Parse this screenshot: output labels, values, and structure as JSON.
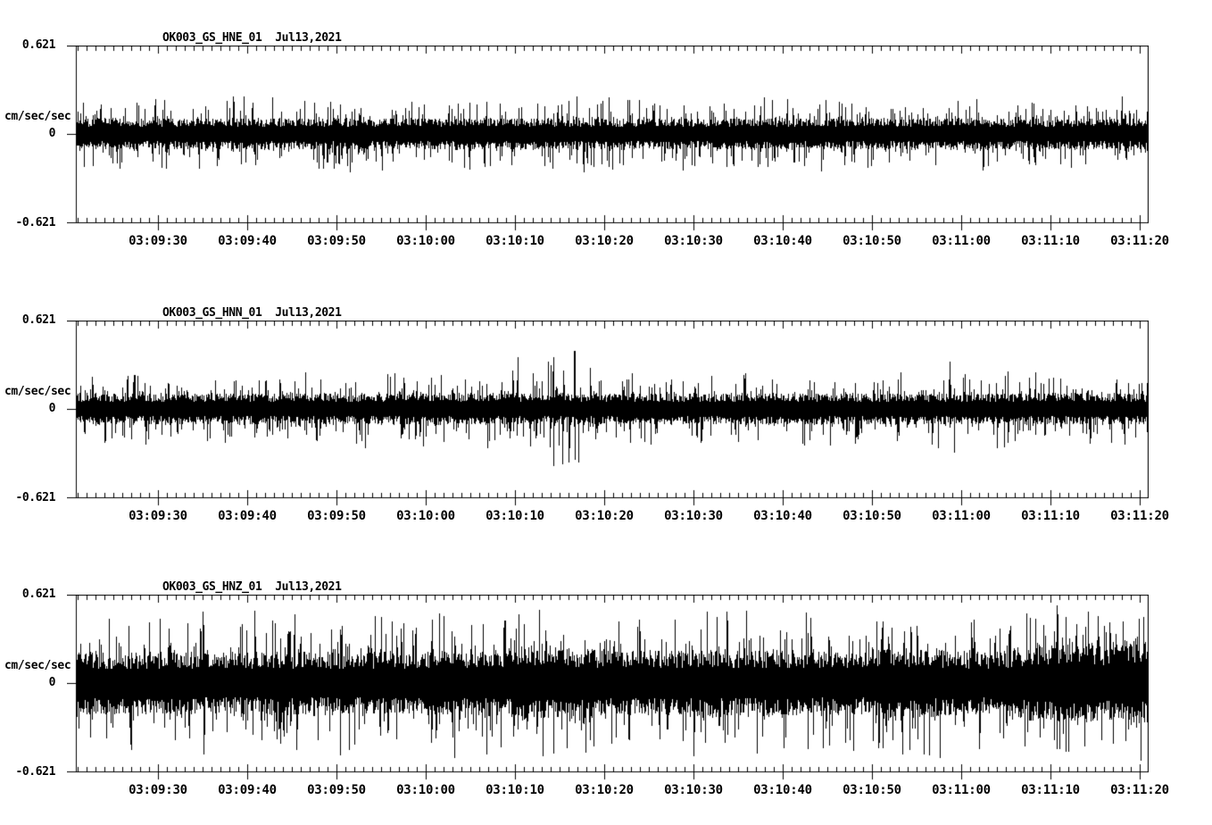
{
  "page": {
    "background": "#ffffff",
    "ink": "#000000"
  },
  "figure": {
    "yunit": "cm/sec/sec",
    "y_axis": {
      "top_label": "0.621",
      "mid_label": "0",
      "bottom_label": "-0.621"
    },
    "x_tick_labels": [
      "03:09:30",
      "03:09:40",
      "03:09:50",
      "03:10:00",
      "03:10:10",
      "03:10:20",
      "03:10:30",
      "03:10:40",
      "03:10:50",
      "03:11:00",
      "03:11:10",
      "03:11:20"
    ],
    "panels": [
      {
        "title": "OK003_GS_HNE_01  Jul13,2021",
        "channel": "HNE"
      },
      {
        "title": "OK003_GS_HNN_01  Jul13,2021",
        "channel": "HNN"
      },
      {
        "title": "OK003_GS_HNZ_01  Jul13,2021",
        "channel": "HNZ"
      }
    ]
  },
  "chart_data": [
    {
      "type": "line",
      "title": "OK003_GS_HNE_01  Jul13,2021",
      "channel": "HNE",
      "ylabel": "cm/sec/sec",
      "ylim": [
        -0.621,
        0.621
      ],
      "yticks": [
        -0.621,
        0,
        0.621
      ],
      "x_axis": {
        "start": "03:09:20.8",
        "end": "03:11:20.9",
        "major_tick_interval_sec": 10,
        "minor_tick_interval_sec": 1,
        "major_tick_labels": [
          "03:09:30",
          "03:09:40",
          "03:09:50",
          "03:10:00",
          "03:10:10",
          "03:10:20",
          "03:10:30",
          "03:10:40",
          "03:10:50",
          "03:11:00",
          "03:11:10",
          "03:11:20"
        ]
      },
      "description": "Uniform high-frequency acceleration noise; solid band about ±0.11 with spikes to about ±0.33 cm/sec/sec",
      "envelope_sample_interval_sec": 2,
      "band_envelope": 0.11,
      "peak_envelope": [
        0.33,
        0.31,
        0.3,
        0.29,
        0.28,
        0.29,
        0.28,
        0.27,
        0.29,
        0.28,
        0.27,
        0.28,
        0.29,
        0.27,
        0.28,
        0.28,
        0.27,
        0.29,
        0.28,
        0.27,
        0.28,
        0.29,
        0.27,
        0.28,
        0.27,
        0.29,
        0.28,
        0.27,
        0.28,
        0.29,
        0.31,
        0.27,
        0.28,
        0.27,
        0.29,
        0.28,
        0.27,
        0.28,
        0.29,
        0.27,
        0.28,
        0.28,
        0.27,
        0.29,
        0.28,
        0.27,
        0.28,
        0.29,
        0.27,
        0.28,
        0.27,
        0.29,
        0.28,
        0.27,
        0.28,
        0.29,
        0.27,
        0.28,
        0.29,
        0.3,
        0.32
      ],
      "seed": 11
    },
    {
      "type": "line",
      "title": "OK003_GS_HNN_01  Jul13,2021",
      "channel": "HNN",
      "ylabel": "cm/sec/sec",
      "ylim": [
        -0.621,
        0.621
      ],
      "yticks": [
        -0.621,
        0,
        0.621
      ],
      "x_axis": {
        "start": "03:09:20.8",
        "end": "03:11:20.9",
        "major_tick_interval_sec": 10,
        "minor_tick_interval_sec": 1,
        "major_tick_labels": [
          "03:09:30",
          "03:09:40",
          "03:09:50",
          "03:10:00",
          "03:10:10",
          "03:10:20",
          "03:10:30",
          "03:10:40",
          "03:10:50",
          "03:11:00",
          "03:11:10",
          "03:11:20"
        ]
      },
      "description": "Uniform noise band about ±0.11 with spikes to ±0.30; larger downward spikes near 03:10:11 and 03:10:16 reaching about -0.45 cm/sec/sec",
      "envelope_sample_interval_sec": 2,
      "band_envelope": 0.11,
      "peak_envelope": [
        0.3,
        0.29,
        0.28,
        0.29,
        0.28,
        0.27,
        0.29,
        0.28,
        0.27,
        0.28,
        0.29,
        0.28,
        0.27,
        0.29,
        0.28,
        0.27,
        0.28,
        0.29,
        0.27,
        0.28,
        0.29,
        0.28,
        0.27,
        0.28,
        0.3,
        0.44,
        0.31,
        0.45,
        0.42,
        0.29,
        0.28,
        0.27,
        0.29,
        0.28,
        0.27,
        0.29,
        0.28,
        0.29,
        0.27,
        0.28,
        0.29,
        0.28,
        0.27,
        0.3,
        0.28,
        0.27,
        0.29,
        0.28,
        0.3,
        0.36,
        0.31,
        0.29,
        0.36,
        0.29,
        0.28,
        0.28,
        0.27,
        0.29,
        0.28,
        0.29,
        0.3
      ],
      "seed": 22
    },
    {
      "type": "line",
      "title": "OK003_GS_HNZ_01  Jul13,2021",
      "channel": "HNZ",
      "ylabel": "cm/sec/sec",
      "ylim": [
        -0.621,
        0.621
      ],
      "yticks": [
        -0.621,
        0,
        0.621
      ],
      "x_axis": {
        "start": "03:09:20.8",
        "end": "03:11:20.9",
        "major_tick_interval_sec": 10,
        "minor_tick_interval_sec": 1,
        "major_tick_labels": [
          "03:09:30",
          "03:09:40",
          "03:09:50",
          "03:10:00",
          "03:10:10",
          "03:10:20",
          "03:10:30",
          "03:10:40",
          "03:10:50",
          "03:11:00",
          "03:11:10",
          "03:11:20"
        ]
      },
      "description": "Much larger vertical-component noise; solid band about ±0.22 with spikes to ±0.55, maximum near 03:10:14 reaching +0.62, and denser bursts after 03:11:05",
      "envelope_sample_interval_sec": 2,
      "band_envelope": [
        0.22,
        0.22,
        0.22,
        0.22,
        0.22,
        0.22,
        0.22,
        0.22,
        0.22,
        0.22,
        0.22,
        0.22,
        0.22,
        0.22,
        0.22,
        0.22,
        0.22,
        0.22,
        0.22,
        0.22,
        0.23,
        0.23,
        0.23,
        0.23,
        0.24,
        0.26,
        0.26,
        0.26,
        0.25,
        0.24,
        0.23,
        0.23,
        0.23,
        0.23,
        0.23,
        0.24,
        0.23,
        0.23,
        0.23,
        0.23,
        0.23,
        0.23,
        0.22,
        0.22,
        0.22,
        0.23,
        0.25,
        0.25,
        0.24,
        0.23,
        0.22,
        0.22,
        0.23,
        0.26,
        0.29,
        0.28,
        0.3,
        0.29,
        0.27,
        0.3,
        0.28
      ],
      "peak_envelope": [
        0.5,
        0.52,
        0.5,
        0.53,
        0.51,
        0.5,
        0.54,
        0.52,
        0.5,
        0.53,
        0.51,
        0.54,
        0.52,
        0.5,
        0.53,
        0.55,
        0.52,
        0.5,
        0.53,
        0.51,
        0.57,
        0.55,
        0.52,
        0.54,
        0.56,
        0.58,
        0.6,
        0.62,
        0.58,
        0.56,
        0.55,
        0.54,
        0.56,
        0.53,
        0.55,
        0.6,
        0.56,
        0.54,
        0.55,
        0.53,
        0.55,
        0.54,
        0.52,
        0.54,
        0.53,
        0.55,
        0.58,
        0.6,
        0.56,
        0.54,
        0.52,
        0.5,
        0.53,
        0.58,
        0.6,
        0.59,
        0.61,
        0.6,
        0.58,
        0.6,
        0.58
      ],
      "seed": 33
    }
  ]
}
